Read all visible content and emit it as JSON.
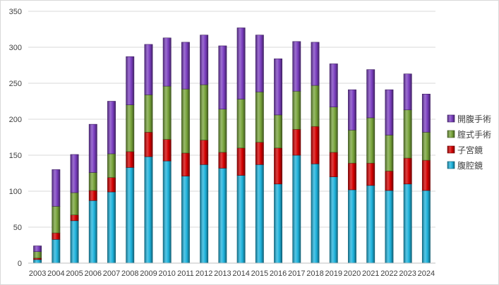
{
  "chart_data": {
    "type": "bar",
    "stacked": true,
    "categories": [
      "2003",
      "2004",
      "2005",
      "2006",
      "2007",
      "2008",
      "2009",
      "2010",
      "2011",
      "2012",
      "2013",
      "2014",
      "2015",
      "2016",
      "2017",
      "2018",
      "2019",
      "2020",
      "2021",
      "2022",
      "2023",
      "2024"
    ],
    "series": [
      {
        "name": "腹腔鏡",
        "color": "#1fb3dc",
        "values": [
          5,
          33,
          59,
          87,
          99,
          133,
          148,
          142,
          121,
          137,
          132,
          122,
          137,
          110,
          150,
          138,
          120,
          102,
          108,
          101,
          110,
          101
        ]
      },
      {
        "name": "子宮鏡",
        "color": "#d40000",
        "values": [
          2,
          9,
          8,
          14,
          20,
          22,
          34,
          30,
          32,
          34,
          22,
          38,
          31,
          50,
          36,
          52,
          34,
          37,
          31,
          27,
          36,
          42
        ]
      },
      {
        "name": "腟式手術",
        "color": "#77a33a",
        "values": [
          9,
          37,
          31,
          25,
          33,
          65,
          52,
          74,
          89,
          77,
          60,
          68,
          70,
          46,
          53,
          57,
          63,
          46,
          63,
          50,
          67,
          39
        ]
      },
      {
        "name": "開腹手術",
        "color": "#7b3fc0",
        "values": [
          8,
          51,
          53,
          67,
          73,
          67,
          70,
          67,
          65,
          69,
          88,
          99,
          79,
          78,
          69,
          60,
          60,
          56,
          67,
          63,
          50,
          53
        ]
      }
    ],
    "ylim": [
      0,
      350
    ],
    "yticks": [
      0,
      50,
      100,
      150,
      200,
      250,
      300,
      350
    ],
    "grid": true,
    "legend_position": "right"
  }
}
